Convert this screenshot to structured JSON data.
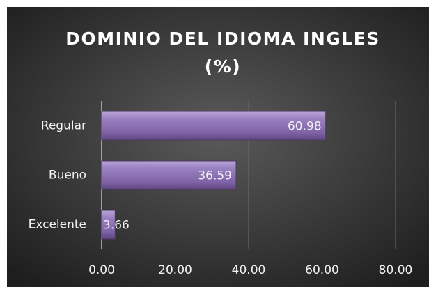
{
  "chart_data": {
    "type": "bar",
    "orientation": "horizontal",
    "title": [
      "DOMINIO DEL IDIOMA INGLES",
      "(%)"
    ],
    "categories": [
      "Regular",
      "Bueno",
      "Excelente"
    ],
    "values": [
      60.98,
      36.59,
      3.66
    ],
    "color": "#8064a2",
    "xlim": [
      0,
      80
    ],
    "xticks": [
      {
        "value": 0,
        "label": "0.00"
      },
      {
        "value": 20,
        "label": "20.00"
      },
      {
        "value": 40,
        "label": "40.00"
      },
      {
        "value": 60,
        "label": "60.00"
      },
      {
        "value": 80,
        "label": "80.00"
      }
    ],
    "grid": true
  }
}
